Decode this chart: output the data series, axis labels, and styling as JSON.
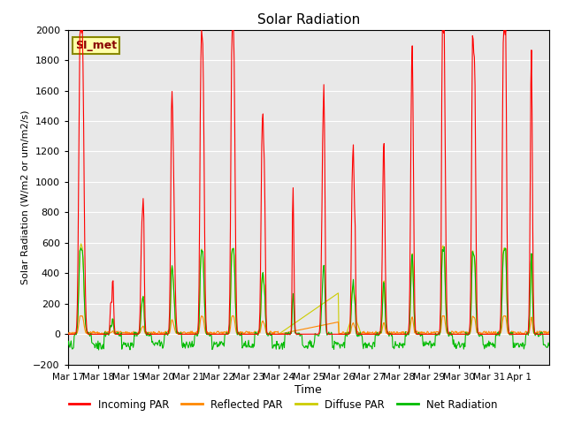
{
  "title": "Solar Radiation",
  "xlabel": "Time",
  "ylabel": "Solar Radiation (W/m2 or um/m2/s)",
  "ylim": [
    -200,
    2000
  ],
  "yticks": [
    -200,
    0,
    200,
    400,
    600,
    800,
    1000,
    1200,
    1400,
    1600,
    1800,
    2000
  ],
  "xtick_labels": [
    "Mar 17",
    "Mar 18",
    "Mar 19",
    "Mar 20",
    "Mar 21",
    "Mar 22",
    "Mar 23",
    "Mar 24",
    "Mar 25",
    "Mar 26",
    "Mar 27",
    "Mar 28",
    "Mar 29",
    "Mar 30",
    "Mar 31",
    "Apr 1"
  ],
  "station_label": "SI_met",
  "bg_color": "#e8e8e8",
  "line_colors": {
    "incoming": "#ff0000",
    "reflected": "#ff8800",
    "diffuse": "#cccc00",
    "net": "#00bb00"
  },
  "legend_labels": [
    "Incoming PAR",
    "Reflected PAR",
    "Diffuse PAR",
    "Net Radiation"
  ]
}
